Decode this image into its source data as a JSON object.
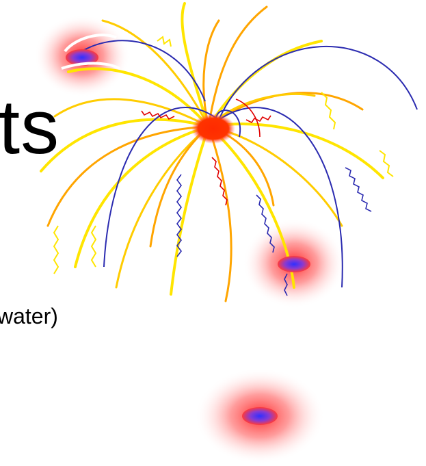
{
  "slide": {
    "title_fragment": "ts",
    "body_fragment": "water)"
  },
  "artwork": {
    "subject": "firework-burst-clipart",
    "colors": {
      "burst_center": "#ff2a00",
      "glow": "#ff3030",
      "ray_yellow": "#ffe500",
      "ray_orange": "#ffa500",
      "ray_blue": "#2b2bb0",
      "ray_red": "#e00000",
      "spark_core": "#4040e0"
    }
  }
}
